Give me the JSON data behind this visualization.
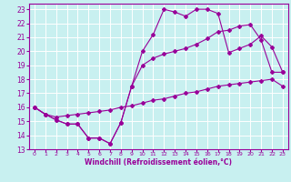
{
  "xlabel": "Windchill (Refroidissement éolien,°C)",
  "background_color": "#c8f0f0",
  "line_color": "#990099",
  "xlim": [
    -0.5,
    23.5
  ],
  "ylim": [
    13,
    23.4
  ],
  "yticks": [
    13,
    14,
    15,
    16,
    17,
    18,
    19,
    20,
    21,
    22,
    23
  ],
  "xticks": [
    0,
    1,
    2,
    3,
    4,
    5,
    6,
    7,
    8,
    9,
    10,
    11,
    12,
    13,
    14,
    15,
    16,
    17,
    18,
    19,
    20,
    21,
    22,
    23
  ],
  "line1_x": [
    0,
    1,
    2,
    3,
    4,
    5,
    6,
    7,
    8,
    9,
    10,
    11,
    12,
    13,
    14,
    15,
    16,
    17,
    18,
    19,
    20,
    21,
    22,
    23
  ],
  "line1_y": [
    16.0,
    15.5,
    15.1,
    14.8,
    14.8,
    13.8,
    13.8,
    13.4,
    14.9,
    17.5,
    20.0,
    21.2,
    23.0,
    22.8,
    22.5,
    23.0,
    23.0,
    22.7,
    19.9,
    20.2,
    20.5,
    21.1,
    20.3,
    18.5
  ],
  "line2_x": [
    0,
    1,
    2,
    3,
    4,
    5,
    6,
    7,
    8,
    9,
    10,
    11,
    12,
    13,
    14,
    15,
    16,
    17,
    18,
    19,
    20,
    21,
    22,
    23
  ],
  "line2_y": [
    16.0,
    15.5,
    15.3,
    15.4,
    15.5,
    15.6,
    15.7,
    15.8,
    16.0,
    16.1,
    16.3,
    16.5,
    16.6,
    16.8,
    17.0,
    17.1,
    17.3,
    17.5,
    17.6,
    17.7,
    17.8,
    17.9,
    18.0,
    17.5
  ],
  "line3_x": [
    0,
    1,
    2,
    3,
    4,
    5,
    6,
    7,
    8,
    9,
    10,
    11,
    12,
    13,
    14,
    15,
    16,
    17,
    18,
    19,
    20,
    21,
    22,
    23
  ],
  "line3_y": [
    16.0,
    15.5,
    15.1,
    14.8,
    14.8,
    13.8,
    13.8,
    13.4,
    14.9,
    17.5,
    19.0,
    19.5,
    19.8,
    20.0,
    20.2,
    20.5,
    20.9,
    21.4,
    21.5,
    21.8,
    21.9,
    20.8,
    18.5,
    18.5
  ]
}
